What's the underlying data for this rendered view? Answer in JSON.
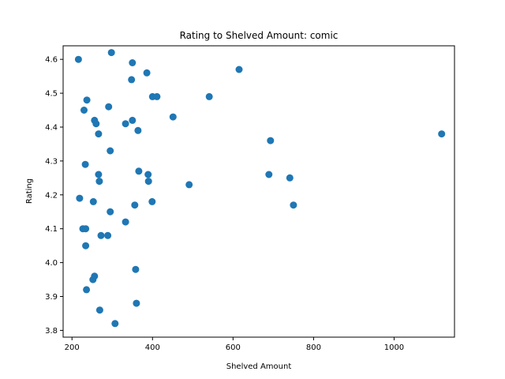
{
  "chart_data": {
    "type": "scatter",
    "title": "Rating to Shelved Amount: comic",
    "xlabel": "Shelved Amount",
    "ylabel": "Rating",
    "xlim": [
      178,
      1150
    ],
    "ylim": [
      3.78,
      4.64
    ],
    "xticks": [
      200,
      400,
      600,
      800,
      1000
    ],
    "yticks": [
      3.8,
      3.9,
      4.0,
      4.1,
      4.2,
      4.3,
      4.4,
      4.5,
      4.6
    ],
    "grid": false,
    "marker_color": "#1f77b4",
    "series": [
      {
        "points": [
          [
            216,
            4.6
          ],
          [
            298,
            4.62
          ],
          [
            350,
            4.59
          ],
          [
            386,
            4.56
          ],
          [
            615,
            4.57
          ],
          [
            348,
            4.54
          ],
          [
            237,
            4.48
          ],
          [
            400,
            4.49
          ],
          [
            411,
            4.49
          ],
          [
            541,
            4.49
          ],
          [
            230,
            4.45
          ],
          [
            291,
            4.46
          ],
          [
            451,
            4.43
          ],
          [
            256,
            4.42
          ],
          [
            260,
            4.41
          ],
          [
            333,
            4.41
          ],
          [
            350,
            4.42
          ],
          [
            364,
            4.39
          ],
          [
            266,
            4.38
          ],
          [
            1118,
            4.38
          ],
          [
            693,
            4.36
          ],
          [
            295,
            4.33
          ],
          [
            233,
            4.29
          ],
          [
            366,
            4.27
          ],
          [
            266,
            4.26
          ],
          [
            268,
            4.24
          ],
          [
            389,
            4.26
          ],
          [
            390,
            4.24
          ],
          [
            689,
            4.26
          ],
          [
            741,
            4.25
          ],
          [
            491,
            4.23
          ],
          [
            219,
            4.19
          ],
          [
            253,
            4.18
          ],
          [
            356,
            4.17
          ],
          [
            399,
            4.18
          ],
          [
            750,
            4.17
          ],
          [
            295,
            4.15
          ],
          [
            333,
            4.12
          ],
          [
            227,
            4.1
          ],
          [
            234,
            4.1
          ],
          [
            272,
            4.08
          ],
          [
            289,
            4.08
          ],
          [
            234,
            4.05
          ],
          [
            358,
            3.98
          ],
          [
            256,
            3.96
          ],
          [
            252,
            3.95
          ],
          [
            236,
            3.92
          ],
          [
            269,
            3.86
          ],
          [
            360,
            3.88
          ],
          [
            307,
            3.82
          ]
        ]
      }
    ]
  }
}
